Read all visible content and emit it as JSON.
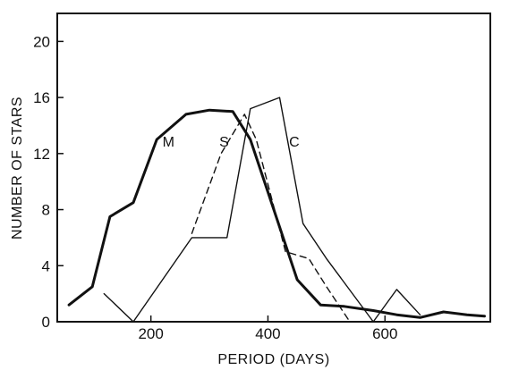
{
  "chart_data": {
    "type": "line",
    "title": "",
    "xlabel": "PERIOD (DAYS)",
    "ylabel": "NUMBER OF STARS",
    "xlim": [
      40,
      780
    ],
    "ylim": [
      0,
      22
    ],
    "x_ticks": [
      200,
      400,
      600
    ],
    "y_ticks": [
      0,
      4,
      8,
      12,
      16,
      20
    ],
    "grid": false,
    "series": [
      {
        "name": "M",
        "style": "thick-solid",
        "x": [
          60,
          100,
          130,
          170,
          210,
          260,
          300,
          340,
          370,
          410,
          450,
          490,
          530,
          580,
          620,
          660,
          700,
          740,
          770
        ],
        "y": [
          1.2,
          2.5,
          7.5,
          8.5,
          13,
          14.8,
          15.1,
          15,
          13,
          8,
          3,
          1.2,
          1.1,
          0.8,
          0.5,
          0.3,
          0.7,
          0.5,
          0.4
        ]
      },
      {
        "name": "S",
        "style": "dashed",
        "x": [
          270,
          320,
          360,
          380,
          430,
          470,
          500,
          540
        ],
        "y": [
          6.3,
          12,
          14.8,
          13,
          5,
          4.5,
          2.5,
          0
        ]
      },
      {
        "name": "C",
        "style": "thin-solid",
        "x": [
          120,
          170,
          270,
          330,
          370,
          420,
          460,
          500,
          580,
          620,
          660
        ],
        "y": [
          2,
          0,
          6,
          6,
          15.2,
          16,
          7,
          4.5,
          0,
          2.3,
          0.5
        ]
      }
    ],
    "series_labels": [
      {
        "text": "M",
        "x": 230,
        "y": 12.5
      },
      {
        "text": "S",
        "x": 325,
        "y": 12.5
      },
      {
        "text": "C",
        "x": 445,
        "y": 12.5
      }
    ]
  }
}
